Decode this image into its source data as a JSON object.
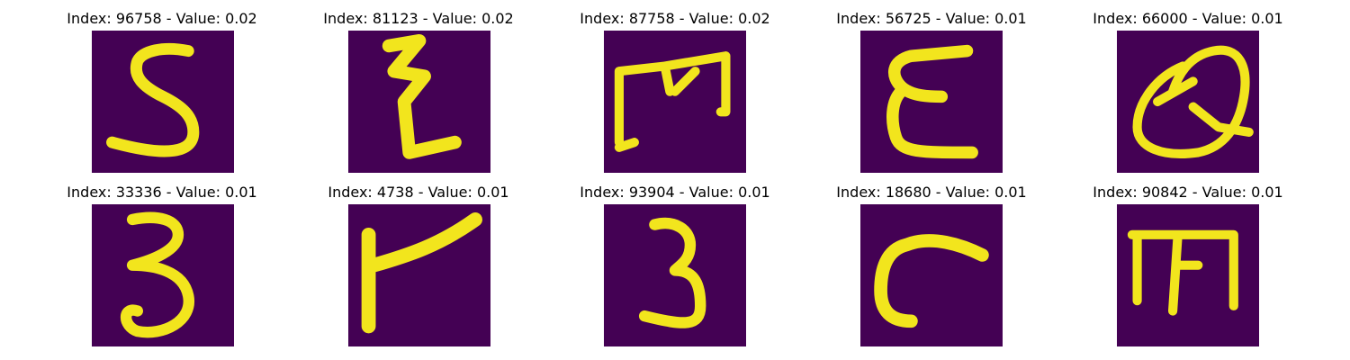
{
  "figure": {
    "background_color": "#440154",
    "stroke_color": "#f2e51d",
    "panels": [
      {
        "title": "Index: 96758 - Value: 0.02",
        "glyph": "5"
      },
      {
        "title": "Index: 81123 - Value: 0.02",
        "glyph": "Z-like"
      },
      {
        "title": "Index: 87758 - Value: 0.02",
        "glyph": "m"
      },
      {
        "title": "Index: 56725 - Value: 0.01",
        "glyph": "E"
      },
      {
        "title": "Index: 66000 - Value: 0.01",
        "glyph": "Q"
      },
      {
        "title": "Index: 33336 - Value: 0.01",
        "glyph": "3"
      },
      {
        "title": "Index: 4738 - Value: 0.01",
        "glyph": "r"
      },
      {
        "title": "Index: 93904 - Value: 0.01",
        "glyph": "3"
      },
      {
        "title": "Index: 18680 - Value: 0.01",
        "glyph": "c"
      },
      {
        "title": "Index: 90842 - Value: 0.01",
        "glyph": "m"
      }
    ]
  }
}
